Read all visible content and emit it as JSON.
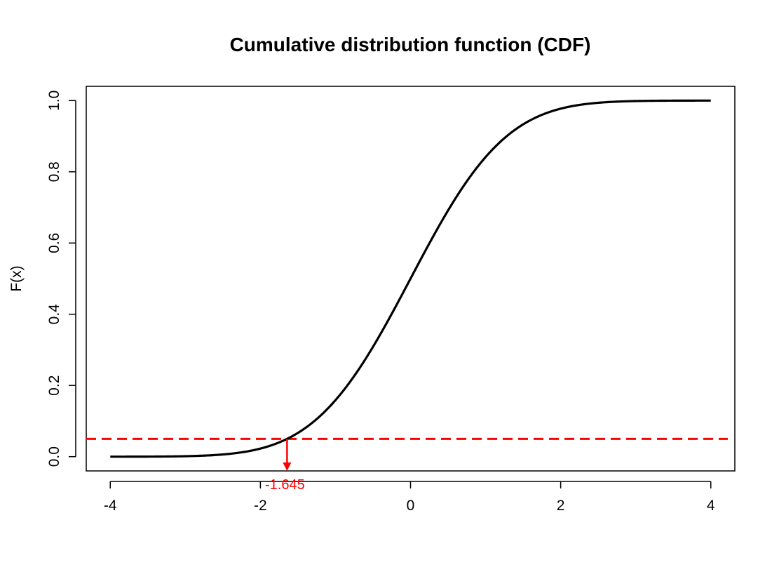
{
  "chart_data": {
    "type": "line",
    "title": "Cumulative distribution function (CDF)",
    "xlabel": "",
    "ylabel": "F(x)",
    "xlim": [
      -4,
      4
    ],
    "ylim": [
      0,
      1
    ],
    "x_ticks": [
      -4,
      -2,
      0,
      2,
      4
    ],
    "x_tick_labels": [
      "-4",
      "-2",
      "0",
      "2",
      "4"
    ],
    "y_ticks": [
      0,
      0.2,
      0.4,
      0.6,
      0.8,
      1
    ],
    "y_tick_labels": [
      "0.0",
      "0.2",
      "0.4",
      "0.6",
      "0.8",
      "1.0"
    ],
    "grid": false,
    "series": [
      {
        "distribution": "standard normal CDF",
        "x_range": [
          -4,
          4
        ],
        "color": "#000000"
      }
    ],
    "annotations": {
      "threshold_line": {
        "y": 0.05,
        "style": "dashed",
        "color": "#ff0000"
      },
      "quantile": {
        "x": -1.645,
        "y": 0.05,
        "label": "-1.645",
        "color": "#ff0000"
      }
    }
  }
}
